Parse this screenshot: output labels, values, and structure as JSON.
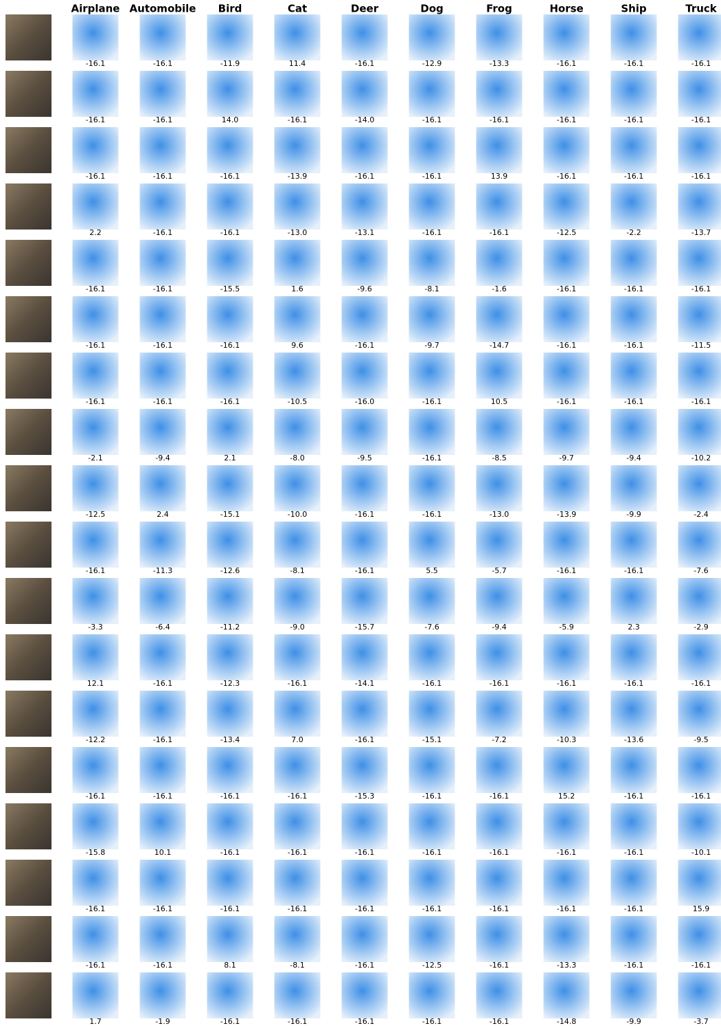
{
  "header": {
    "columns": [
      "Airplane",
      "Automobile",
      "Bird",
      "Cat",
      "Deer",
      "Dog",
      "Frog",
      "Horse",
      "Ship",
      "Truck"
    ]
  },
  "rows": [
    [
      "-16.1",
      "-16.1",
      "-11.9",
      "11.4",
      "-16.1",
      "-12.9",
      "-13.3",
      "-16.1",
      "-16.1",
      "-16.1"
    ],
    [
      "-16.1",
      "-16.1",
      "14.0",
      "-16.1",
      "-14.0",
      "-16.1",
      "-16.1",
      "-16.1",
      "-16.1",
      "-16.1"
    ],
    [
      "-16.1",
      "-16.1",
      "-16.1",
      "-13.9",
      "-16.1",
      "-16.1",
      "13.9",
      "-16.1",
      "-16.1",
      "-16.1"
    ],
    [
      "2.2",
      "-16.1",
      "-16.1",
      "-13.0",
      "-13.1",
      "-16.1",
      "-16.1",
      "-12.5",
      "-2.2",
      "-13.7"
    ],
    [
      "-16.1",
      "-16.1",
      "-15.5",
      "1.6",
      "-9.6",
      "-8.1",
      "-1.6",
      "-16.1",
      "-16.1",
      "-16.1"
    ],
    [
      "-16.1",
      "-16.1",
      "-16.1",
      "9.6",
      "-16.1",
      "-9.7",
      "-14.7",
      "-16.1",
      "-16.1",
      "-11.5"
    ],
    [
      "-16.1",
      "-16.1",
      "-16.1",
      "-10.5",
      "-16.0",
      "-16.1",
      "10.5",
      "-16.1",
      "-16.1",
      "-16.1"
    ],
    [
      "-2.1",
      "-9.4",
      "2.1",
      "-8.0",
      "-9.5",
      "-16.1",
      "-8.5",
      "-9.7",
      "-9.4",
      "-10.2"
    ],
    [
      "-12.5",
      "2.4",
      "-15.1",
      "-10.0",
      "-16.1",
      "-16.1",
      "-13.0",
      "-13.9",
      "-9.9",
      "-2.4"
    ],
    [
      "-16.1",
      "-11.3",
      "-12.6",
      "-8.1",
      "-16.1",
      "5.5",
      "-5.7",
      "-16.1",
      "-16.1",
      "-7.6"
    ],
    [
      "-3.3",
      "-6.4",
      "-11.2",
      "-9.0",
      "-15.7",
      "-7.6",
      "-9.4",
      "-5.9",
      "2.3",
      "-2.9"
    ],
    [
      "12.1",
      "-16.1",
      "-12.3",
      "-16.1",
      "-14.1",
      "-16.1",
      "-16.1",
      "-16.1",
      "-16.1",
      "-16.1"
    ],
    [
      "-12.2",
      "-16.1",
      "-13.4",
      "7.0",
      "-16.1",
      "-15.1",
      "-7.2",
      "-10.3",
      "-13.6",
      "-9.5"
    ],
    [
      "-16.1",
      "-16.1",
      "-16.1",
      "-16.1",
      "-15.3",
      "-16.1",
      "-16.1",
      "15.2",
      "-16.1",
      "-16.1"
    ],
    [
      "-15.8",
      "10.1",
      "-16.1",
      "-16.1",
      "-16.1",
      "-16.1",
      "-16.1",
      "-16.1",
      "-16.1",
      "-10.1"
    ],
    [
      "-16.1",
      "-16.1",
      "-16.1",
      "-16.1",
      "-16.1",
      "-16.1",
      "-16.1",
      "-16.1",
      "-16.1",
      "15.9"
    ],
    [
      "-16.1",
      "-16.1",
      "8.1",
      "-8.1",
      "-16.1",
      "-12.5",
      "-16.1",
      "-13.3",
      "-16.1",
      "-16.1"
    ],
    [
      "1.7",
      "-1.9",
      "-16.1",
      "-16.1",
      "-16.1",
      "-16.1",
      "-16.1",
      "-14.8",
      "-9.9",
      "-3.7"
    ]
  ]
}
